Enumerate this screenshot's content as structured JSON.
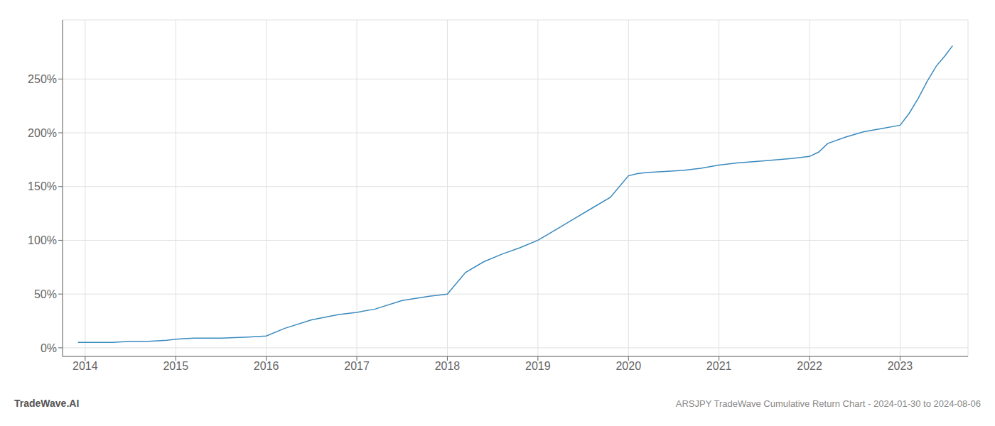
{
  "chart_data": {
    "type": "line",
    "title": "ARSJPY TradeWave Cumulative Return Chart - 2024-01-30 to 2024-08-06",
    "annotations": [
      "TradeWave.AI"
    ],
    "color": "#3a8abf",
    "grid": true,
    "x": [
      2013.92,
      2014.0,
      2014.15,
      2014.3,
      2014.5,
      2014.7,
      2014.9,
      2015.0,
      2015.2,
      2015.5,
      2015.8,
      2016.0,
      2016.2,
      2016.5,
      2016.8,
      2017.0,
      2017.2,
      2017.5,
      2017.8,
      2018.0,
      2018.1,
      2018.2,
      2018.4,
      2018.6,
      2018.8,
      2019.0,
      2019.2,
      2019.4,
      2019.6,
      2019.8,
      2020.0,
      2020.1,
      2020.2,
      2020.4,
      2020.6,
      2020.8,
      2021.0,
      2021.2,
      2021.5,
      2021.8,
      2022.0,
      2022.1,
      2022.2,
      2022.4,
      2022.6,
      2022.8,
      2023.0,
      2023.1,
      2023.2,
      2023.3,
      2023.4,
      2023.5,
      2023.58
    ],
    "values": [
      5,
      5,
      5,
      5,
      6,
      6,
      7,
      8,
      9,
      9,
      10,
      11,
      18,
      26,
      31,
      33,
      36,
      44,
      48,
      50,
      60,
      70,
      80,
      87,
      93,
      100,
      110,
      120,
      130,
      140,
      160,
      162,
      163,
      164,
      165,
      167,
      170,
      172,
      174,
      176,
      178,
      182,
      190,
      196,
      201,
      204,
      207,
      218,
      232,
      248,
      262,
      272,
      281
    ],
    "xlim": [
      2013.75,
      2023.75
    ],
    "xticks": [
      2014,
      2015,
      2016,
      2017,
      2018,
      2019,
      2020,
      2021,
      2022,
      2023
    ],
    "ylim": [
      -8,
      305
    ],
    "yticks": [
      {
        "value": 0,
        "label": "0%"
      },
      {
        "value": 50,
        "label": "50%"
      },
      {
        "value": 100,
        "label": "100%"
      },
      {
        "value": 150,
        "label": "150%"
      },
      {
        "value": 200,
        "label": "200%"
      },
      {
        "value": 250,
        "label": "250%"
      }
    ]
  }
}
